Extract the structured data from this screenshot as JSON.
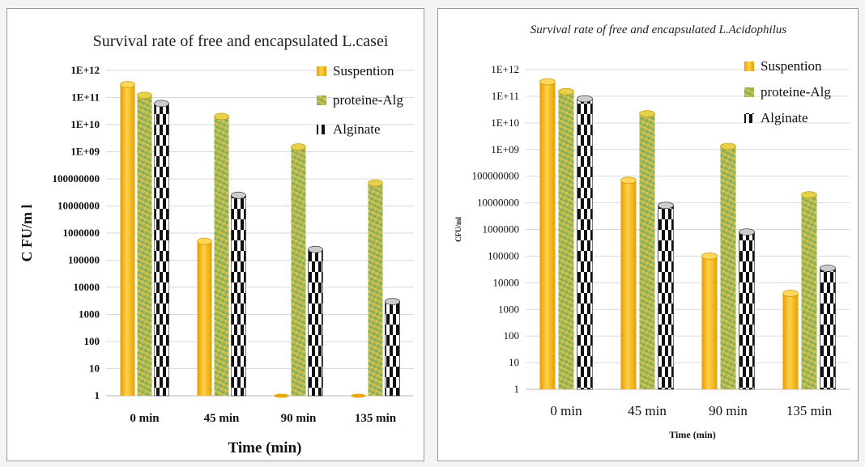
{
  "chart_data": [
    {
      "type": "bar",
      "title": "Survival rate of free and encapsulated L.casei",
      "xlabel": "Time (min)",
      "ylabel": "C FU/m l",
      "categories": [
        "0 min",
        "45 min",
        "90 min",
        "135 min"
      ],
      "y_scale": "log10",
      "ylim": [
        1,
        1000000000000.0
      ],
      "y_tick_labels": [
        "1",
        "10",
        "100",
        "1000",
        "10000",
        "100000",
        "1000000",
        "10000000",
        "100000000",
        "1E+09",
        "1E+10",
        "1E+11",
        "1E+12"
      ],
      "legend_position": "top-right",
      "series": [
        {
          "name": "Suspention",
          "values": [
            300000000000.0,
            500000,
            1,
            1
          ]
        },
        {
          "name": "proteine-Alg",
          "values": [
            120000000000.0,
            20000000000.0,
            1500000000.0,
            70000000.0
          ]
        },
        {
          "name": "Alginate",
          "values": [
            60000000000.0,
            25000000.0,
            250000.0,
            3000
          ]
        }
      ]
    },
    {
      "type": "bar",
      "title": "Survival rate of free and encapsulated  L.Acidophilus",
      "xlabel": "Time (min)",
      "ylabel": "CFU/ml",
      "categories": [
        "0 min",
        "45 min",
        "90 min",
        "135 min"
      ],
      "y_scale": "log10",
      "ylim": [
        1,
        1000000000000.0
      ],
      "y_tick_labels": [
        "1",
        "10",
        "100",
        "1000",
        "10000",
        "100000",
        "1000000",
        "10000000",
        "100000000",
        "1E+09",
        "1E+10",
        "1E+11",
        "1E+12"
      ],
      "legend_position": "top-right",
      "series": [
        {
          "name": "Suspention",
          "values": [
            350000000000.0,
            70000000.0,
            100000.0,
            4000
          ]
        },
        {
          "name": "proteine-Alg",
          "values": [
            150000000000.0,
            22000000000.0,
            1300000000.0,
            20000000.0
          ]
        },
        {
          "name": "Alginate",
          "values": [
            80000000000.0,
            8000000.0,
            800000.0,
            35000.0
          ]
        }
      ]
    }
  ],
  "colors": {
    "suspention": "#f5b800",
    "proteine_alg": "#b8b040",
    "alginate": "#111111",
    "gridline": "#d9d9d9"
  }
}
